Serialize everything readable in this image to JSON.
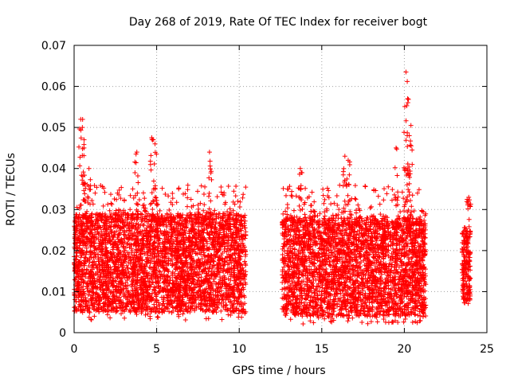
{
  "chart_data": {
    "type": "scatter",
    "title": "Day 268 of 2019, Rate Of TEC Index for receiver bogt",
    "xlabel": "GPS time / hours",
    "ylabel": "ROTI / TECUs",
    "xlim": [
      0,
      25
    ],
    "ylim": [
      0,
      0.07
    ],
    "xticks": [
      0,
      5,
      10,
      15,
      20,
      25
    ],
    "xtick_labels": [
      "0",
      "5",
      "10",
      "15",
      "20",
      "25"
    ],
    "yticks": [
      0,
      0.01,
      0.02,
      0.03,
      0.04,
      0.05,
      0.06,
      0.07
    ],
    "ytick_labels": [
      "0",
      "0.01",
      "0.02",
      "0.03",
      "0.04",
      "0.05",
      "0.06",
      "0.07"
    ],
    "grid": true,
    "marker": "+",
    "color": "#ff0000",
    "series": [
      {
        "name": "ROTI",
        "segments": [
          {
            "x_start": 0.0,
            "x_end": 10.4,
            "y_floor": 0.003,
            "typical_top": 0.03
          },
          {
            "x_start": 12.6,
            "x_end": 21.3,
            "y_floor": 0.002,
            "typical_top": 0.03
          },
          {
            "x_start": 23.5,
            "x_end": 24.0,
            "y_floor": 0.005,
            "typical_top": 0.025
          }
        ],
        "peaks": [
          {
            "x": 0.4,
            "y": 0.052
          },
          {
            "x": 0.5,
            "y": 0.05
          },
          {
            "x": 0.6,
            "y": 0.045
          },
          {
            "x": 0.9,
            "y": 0.04
          },
          {
            "x": 3.8,
            "y": 0.044
          },
          {
            "x": 4.7,
            "y": 0.0475
          },
          {
            "x": 4.9,
            "y": 0.046
          },
          {
            "x": 8.2,
            "y": 0.044
          },
          {
            "x": 13.7,
            "y": 0.04
          },
          {
            "x": 16.4,
            "y": 0.043
          },
          {
            "x": 16.6,
            "y": 0.042
          },
          {
            "x": 19.5,
            "y": 0.045
          },
          {
            "x": 20.1,
            "y": 0.0635
          },
          {
            "x": 20.2,
            "y": 0.057
          },
          {
            "x": 20.4,
            "y": 0.0505
          },
          {
            "x": 20.3,
            "y": 0.048
          },
          {
            "x": 23.9,
            "y": 0.033
          }
        ]
      }
    ]
  }
}
